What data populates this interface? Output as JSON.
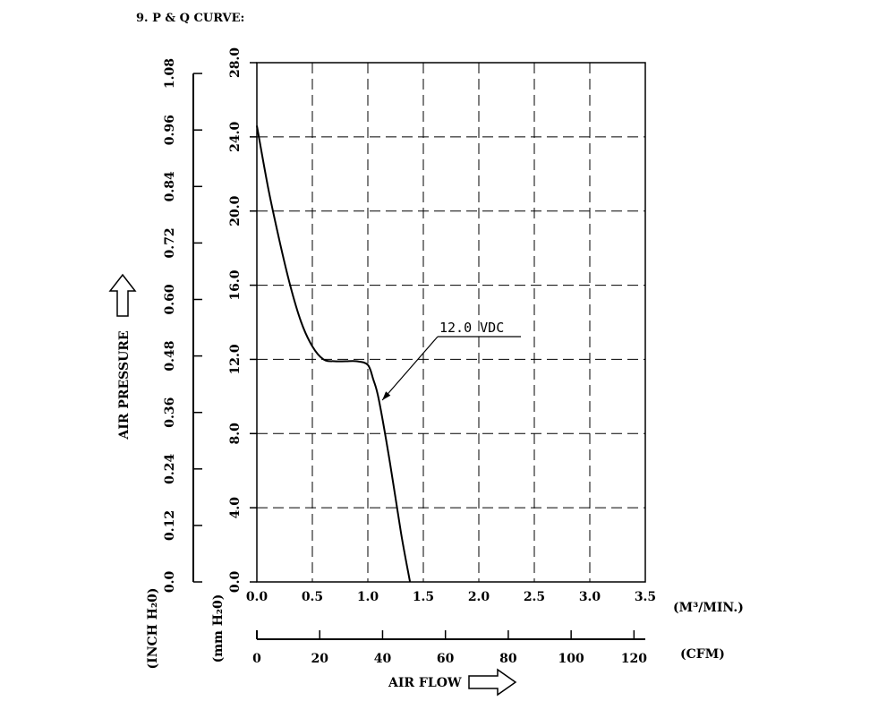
{
  "heading": "9. P & Q CURVE:",
  "chart_data": {
    "type": "line",
    "title": "",
    "grid": true,
    "x_axis_primary": {
      "unit": "(M³/MIN.)",
      "range": [
        0.0,
        3.5
      ],
      "ticks": [
        "0.0",
        "0.5",
        "1.0",
        "1.5",
        "2.0",
        "2.5",
        "3.0",
        "3.5"
      ]
    },
    "x_axis_secondary": {
      "unit": "(CFM)",
      "range": [
        0,
        123.6
      ],
      "ticks": [
        "0",
        "20",
        "40",
        "60",
        "80",
        "100",
        "120"
      ]
    },
    "x_label": "AIR FLOW",
    "y_axis_primary": {
      "unit": "(mm H₂0)",
      "range": [
        0.0,
        28.0
      ],
      "ticks": [
        "0.0",
        "4.0",
        "8.0",
        "12.0",
        "16.0",
        "20.0",
        "24.0",
        "28.0"
      ]
    },
    "y_axis_secondary": {
      "unit": "(INCH H₂0)",
      "range": [
        0.0,
        1.103
      ],
      "ticks": [
        "0.0",
        "0.12",
        "0.24",
        "0.36",
        "0.48",
        "0.60",
        "0.72",
        "0.84",
        "0.96",
        "1.08"
      ]
    },
    "y_label": "AIR PRESSURE",
    "series": [
      {
        "name": "12.0 VDC",
        "x": [
          0.0,
          0.1,
          0.2,
          0.3,
          0.4,
          0.5,
          0.6,
          0.7,
          0.8,
          0.9,
          1.0,
          1.05,
          1.1,
          1.2,
          1.3,
          1.38
        ],
        "y": [
          24.6,
          21.3,
          18.5,
          16.0,
          14.0,
          12.7,
          12.0,
          11.9,
          11.9,
          11.9,
          11.7,
          10.9,
          9.8,
          6.4,
          2.6,
          0.0
        ]
      }
    ],
    "annotation": {
      "text": "12.0 VDC",
      "points_to": {
        "x": 1.13,
        "y": 9.8
      }
    }
  }
}
